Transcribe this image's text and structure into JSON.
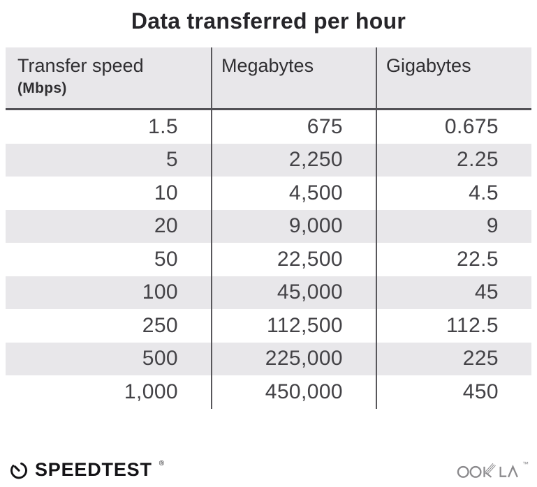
{
  "title": "Data transferred per hour",
  "table": {
    "columns": [
      {
        "label": "Transfer speed",
        "sub": "(Mbps)"
      },
      {
        "label": "Megabytes"
      },
      {
        "label": "Gigabytes"
      }
    ],
    "rows": [
      [
        "1.5",
        "675",
        "0.675"
      ],
      [
        "5",
        "2,250",
        "2.25"
      ],
      [
        "10",
        "4,500",
        "4.5"
      ],
      [
        "20",
        "9,000",
        "9"
      ],
      [
        "50",
        "22,500",
        "22.5"
      ],
      [
        "100",
        "45,000",
        "45"
      ],
      [
        "250",
        "112,500",
        "112.5"
      ],
      [
        "500",
        "225,000",
        "225"
      ],
      [
        "1,000",
        "450,000",
        "450"
      ]
    ]
  },
  "chart_data": {
    "type": "table",
    "title": "Data transferred per hour",
    "columns": [
      "Transfer speed (Mbps)",
      "Megabytes",
      "Gigabytes"
    ],
    "rows": [
      [
        1.5,
        675,
        0.675
      ],
      [
        5,
        2250,
        2.25
      ],
      [
        10,
        4500,
        4.5
      ],
      [
        20,
        9000,
        9
      ],
      [
        50,
        22500,
        22.5
      ],
      [
        100,
        45000,
        45
      ],
      [
        250,
        112500,
        112.5
      ],
      [
        500,
        225000,
        225
      ],
      [
        1000,
        450000,
        450
      ]
    ]
  },
  "footer": {
    "speedtest_label": "SPEEDTEST",
    "speedtest_reg": "®",
    "ookla_label": "OOKLA",
    "ookla_tm": "™"
  },
  "colors": {
    "band": "#e8e7ea",
    "line": "#58575b",
    "header_underline": "#525156",
    "number_text": "#434246",
    "header_text": "#2f2e31",
    "title_text": "#262529",
    "speedtest_black": "#141316",
    "ookla_gray": "#8b8a8d"
  }
}
